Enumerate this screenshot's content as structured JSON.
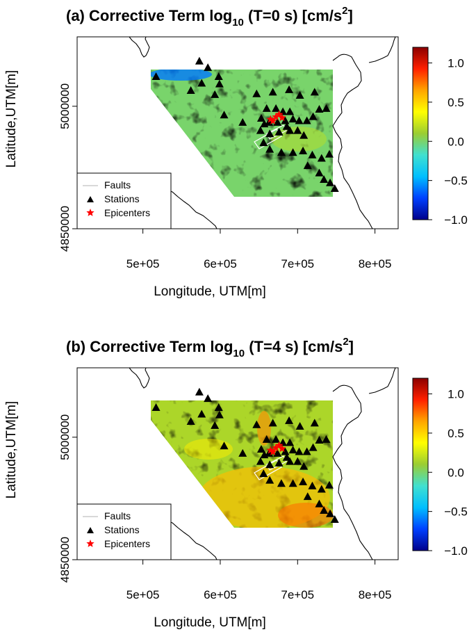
{
  "colors": {
    "cmap": [
      "#00008b",
      "#0040ff",
      "#00bfff",
      "#40e0d0",
      "#9acd32",
      "#ffff00",
      "#ffa500",
      "#ff2000",
      "#8b0000"
    ],
    "station": "#000000",
    "epicenter": "#ff0000",
    "fault": "#cccccc"
  },
  "chart_data": [
    {
      "type": "heatmap",
      "panel": "(a)",
      "title": "Corrective Term log",
      "title_sub": "10",
      "title_tail": " (T=0 s) [cm/s",
      "title_sup": "2",
      "title_end": "]",
      "xlabel": "Longitude, UTM[m]",
      "ylabel": "Latitude,UTM[m]",
      "xlim": [
        415000,
        830000
      ],
      "ylim": [
        4850000,
        5085000
      ],
      "xticks": [
        500000,
        600000,
        700000,
        800000
      ],
      "xtick_labels": [
        "5e+05",
        "6e+05",
        "7e+05",
        "8e+05"
      ],
      "yticks": [
        4850000,
        5000000
      ],
      "ytick_labels": [
        "4850000",
        "5000000"
      ],
      "colorbar": {
        "min": -1.0,
        "max": 1.2,
        "ticks": [
          1.0,
          0.5,
          0.0,
          -0.5,
          -1.0
        ],
        "tick_labels": [
          "1.0",
          "0.5",
          "0.0",
          "−0.5",
          "−1.0"
        ]
      },
      "field_mean": 0.0,
      "field_description": "mostly near zero, cyan-green with scattered blue patches",
      "legend": {
        "location": "bottom-left",
        "entries": [
          "Faults",
          "Stations",
          "Epicenters"
        ]
      }
    },
    {
      "type": "heatmap",
      "panel": "(b)",
      "title": "Corrective Term log",
      "title_sub": "10",
      "title_tail": " (T=4 s) [cm/s",
      "title_sup": "2",
      "title_end": "]",
      "xlabel": "Longitude, UTM[m]",
      "ylabel": "Latitude,UTM[m]",
      "xlim": [
        415000,
        830000
      ],
      "ylim": [
        4850000,
        5085000
      ],
      "xticks": [
        500000,
        600000,
        700000,
        800000
      ],
      "xtick_labels": [
        "5e+05",
        "6e+05",
        "7e+05",
        "8e+05"
      ],
      "yticks": [
        4850000,
        5000000
      ],
      "ytick_labels": [
        "4850000",
        "5000000"
      ],
      "colorbar": {
        "min": -1.0,
        "max": 1.2,
        "ticks": [
          1.0,
          0.5,
          0.0,
          -0.5,
          -1.0
        ],
        "tick_labels": [
          "1.0",
          "0.5",
          "0.0",
          "−0.5",
          "−1.0"
        ]
      },
      "field_mean": 0.15,
      "field_description": "positive (yellow-orange) in the southern part near the epicenters",
      "legend": {
        "location": "bottom-left",
        "entries": [
          "Faults",
          "Stations",
          "Epicenters"
        ]
      }
    }
  ],
  "stations": [
    [
      517000,
      5036000
    ],
    [
      573000,
      5055000
    ],
    [
      584000,
      5047000
    ],
    [
      562000,
      5019000
    ],
    [
      576000,
      5028000
    ],
    [
      598000,
      5036000
    ],
    [
      593000,
      5014000
    ],
    [
      599000,
      5027000
    ],
    [
      605000,
      4989000
    ],
    [
      629000,
      4980000
    ],
    [
      647000,
      5015000
    ],
    [
      668000,
      5017000
    ],
    [
      689000,
      5020000
    ],
    [
      722000,
      5017000
    ],
    [
      703000,
      5013000
    ],
    [
      660000,
      4997000
    ],
    [
      672000,
      4997000
    ],
    [
      681000,
      4993000
    ],
    [
      690000,
      4993000
    ],
    [
      653000,
      4985000
    ],
    [
      663000,
      4980000
    ],
    [
      674000,
      4980000
    ],
    [
      684000,
      4982000
    ],
    [
      694000,
      4984000
    ],
    [
      702000,
      4982000
    ],
    [
      712000,
      4982000
    ],
    [
      720000,
      4987000
    ],
    [
      728000,
      4996000
    ],
    [
      737000,
      4997000
    ],
    [
      652000,
      4970000
    ],
    [
      664000,
      4966000
    ],
    [
      676000,
      4968000
    ],
    [
      690000,
      4970000
    ],
    [
      700000,
      4970000
    ],
    [
      708000,
      4964000
    ],
    [
      656000,
      4955000
    ],
    [
      664000,
      4947000
    ],
    [
      679000,
      4943000
    ],
    [
      694000,
      4943000
    ],
    [
      707000,
      4945000
    ],
    [
      719000,
      4940000
    ],
    [
      731000,
      4936000
    ],
    [
      741000,
      4941000
    ],
    [
      713000,
      4927000
    ],
    [
      728000,
      4918000
    ],
    [
      734000,
      4910000
    ],
    [
      742000,
      4906000
    ],
    [
      748000,
      4899000
    ],
    [
      657000,
      4978000
    ],
    [
      686000,
      4975000
    ]
  ],
  "epicenters": [
    [
      665000,
      4984000
    ],
    [
      668000,
      4982000
    ],
    [
      672000,
      4987000
    ],
    [
      676000,
      4990000
    ],
    [
      680000,
      4986000
    ]
  ]
}
